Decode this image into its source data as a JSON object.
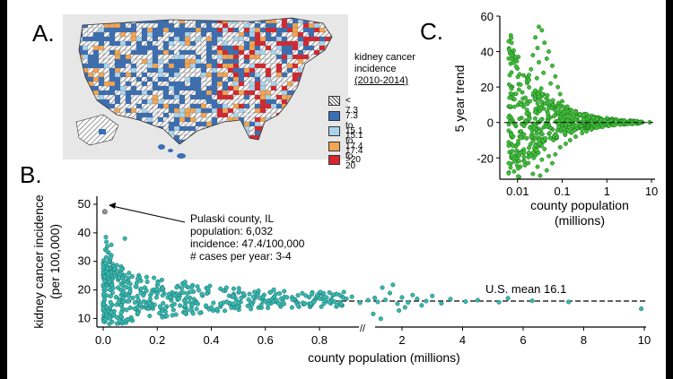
{
  "panelA": {
    "label": "A.",
    "legend_title": [
      "kidney cancer",
      "incidence",
      "(2010-2014)"
    ],
    "legend": [
      {
        "label": "< 7.3",
        "color": "#ffffff",
        "pattern": "hatch"
      },
      {
        "label": "7.3 to 15.1",
        "color": "#3a6fb5"
      },
      {
        "label": "15.1 to 17.4",
        "color": "#a9d4ec"
      },
      {
        "label": "17.4 to 20",
        "color": "#f2a553"
      },
      {
        "label": ">20",
        "color": "#d7262e"
      }
    ]
  },
  "panelB": {
    "label": "B.",
    "annotation_lines": [
      "Pulaski county, IL",
      "population:   6,032",
      "incidence:   47.4/100,000",
      "# cases per year:   3-4"
    ],
    "mean_label": "U.S. mean 16.1",
    "color": "#35b8b0"
  },
  "panelC": {
    "label": "C.",
    "color": "#3fbf3a"
  },
  "chart_data": [
    {
      "type": "scatter",
      "title": "",
      "xlabel": "county population (millions)",
      "ylabel": [
        "kidney cancer incidence",
        "(per 100,000)"
      ],
      "x_ticks_left": [
        "0.0",
        "0.2",
        "0.4",
        "0.6",
        "0.8"
      ],
      "x_ticks_right": [
        "2",
        "4",
        "6",
        "8",
        "10"
      ],
      "y_ticks": [
        "10",
        "20",
        "30",
        "40",
        "50"
      ],
      "xlim": [
        0,
        10
      ],
      "axis_break_at": 1.0,
      "ylim": [
        7,
        50
      ],
      "reference_line": {
        "y": 16.1,
        "label": "U.S. mean 16.1"
      },
      "highlight_point": {
        "x": 0.006032,
        "y": 47.4,
        "name": "Pulaski county, IL"
      },
      "points": [
        [
          0.006,
          47.4
        ],
        [
          0.01,
          38.5
        ],
        [
          0.012,
          36.8
        ],
        [
          0.015,
          35.2
        ],
        [
          0.008,
          34.1
        ],
        [
          0.02,
          33.0
        ],
        [
          0.03,
          32.1
        ],
        [
          0.011,
          31.4
        ],
        [
          0.025,
          30.5
        ],
        [
          0.018,
          29.7
        ],
        [
          0.035,
          29.0
        ],
        [
          0.04,
          28.2
        ],
        [
          0.016,
          27.5
        ],
        [
          0.05,
          26.8
        ],
        [
          0.028,
          26.1
        ],
        [
          0.06,
          25.4
        ],
        [
          0.045,
          24.9
        ],
        [
          0.07,
          24.2
        ],
        [
          0.022,
          23.8
        ],
        [
          0.08,
          23.1
        ],
        [
          0.09,
          22.6
        ],
        [
          0.1,
          22.1
        ],
        [
          0.033,
          21.7
        ],
        [
          0.12,
          21.2
        ],
        [
          0.055,
          20.8
        ],
        [
          0.14,
          20.4
        ],
        [
          0.065,
          20.0
        ],
        [
          0.16,
          19.7
        ],
        [
          0.075,
          19.3
        ],
        [
          0.18,
          19.0
        ],
        [
          0.2,
          18.7
        ],
        [
          0.085,
          18.4
        ],
        [
          0.22,
          18.1
        ],
        [
          0.095,
          17.8
        ],
        [
          0.25,
          17.5
        ],
        [
          0.11,
          17.2
        ],
        [
          0.28,
          16.9
        ],
        [
          0.13,
          16.6
        ],
        [
          0.3,
          16.3
        ],
        [
          0.15,
          16.0
        ],
        [
          0.32,
          15.7
        ],
        [
          0.17,
          15.4
        ],
        [
          0.35,
          15.1
        ],
        [
          0.19,
          14.8
        ],
        [
          0.38,
          14.5
        ],
        [
          0.21,
          14.2
        ],
        [
          0.4,
          13.9
        ],
        [
          0.23,
          13.6
        ],
        [
          0.42,
          13.3
        ],
        [
          0.26,
          13.0
        ],
        [
          0.45,
          12.7
        ],
        [
          0.02,
          12.4
        ],
        [
          0.03,
          12.0
        ],
        [
          0.012,
          11.6
        ],
        [
          0.04,
          11.2
        ],
        [
          0.015,
          10.8
        ],
        [
          0.05,
          10.4
        ],
        [
          0.025,
          10.0
        ],
        [
          0.01,
          9.6
        ],
        [
          0.06,
          9.2
        ],
        [
          0.48,
          17.9
        ],
        [
          0.5,
          15.6
        ],
        [
          0.52,
          18.6
        ],
        [
          0.55,
          14.8
        ],
        [
          0.58,
          17.1
        ],
        [
          0.6,
          16.0
        ],
        [
          0.62,
          19.2
        ],
        [
          0.65,
          15.3
        ],
        [
          0.68,
          17.4
        ],
        [
          0.7,
          16.6
        ],
        [
          0.72,
          14.6
        ],
        [
          0.75,
          18.0
        ],
        [
          0.78,
          15.8
        ],
        [
          0.8,
          17.0
        ],
        [
          0.82,
          16.3
        ],
        [
          0.85,
          18.3
        ],
        [
          0.88,
          15.0
        ],
        [
          0.9,
          16.9
        ],
        [
          0.92,
          17.6
        ],
        [
          0.95,
          15.5
        ],
        [
          0.98,
          16.4
        ],
        [
          1.1,
          17.2
        ],
        [
          1.2,
          15.8
        ],
        [
          1.35,
          20.8
        ],
        [
          1.45,
          16.5
        ],
        [
          1.6,
          18.9
        ],
        [
          1.7,
          21.8
        ],
        [
          1.85,
          15.2
        ],
        [
          2.0,
          17.4
        ],
        [
          2.1,
          13.9
        ],
        [
          2.2,
          15.6
        ],
        [
          2.35,
          18.2
        ],
        [
          2.5,
          16.9
        ],
        [
          2.65,
          14.6
        ],
        [
          2.8,
          16.1
        ],
        [
          3.0,
          17.9
        ],
        [
          3.3,
          15.3
        ],
        [
          3.6,
          16.8
        ],
        [
          4.1,
          15.9
        ],
        [
          4.5,
          16.4
        ],
        [
          5.2,
          15.7
        ],
        [
          5.5,
          17.1
        ],
        [
          6.3,
          16.2
        ],
        [
          7.5,
          15.8
        ],
        [
          9.9,
          13.4
        ],
        [
          1.3,
          9.9
        ],
        [
          1.9,
          12.8
        ],
        [
          1.05,
          11.6
        ],
        [
          0.08,
          38.0
        ],
        [
          0.03,
          35.8
        ],
        [
          0.014,
          33.6
        ],
        [
          0.027,
          31.2
        ],
        [
          0.009,
          29.4
        ],
        [
          0.042,
          27.3
        ],
        [
          0.019,
          25.7
        ],
        [
          0.058,
          24.3
        ],
        [
          0.024,
          22.9
        ],
        [
          0.072,
          21.6
        ],
        [
          0.037,
          20.6
        ],
        [
          0.1,
          19.5
        ]
      ]
    },
    {
      "type": "scatter",
      "title": "",
      "xlabel": [
        "county population",
        "(millions)"
      ],
      "ylabel": "5 year trend",
      "x_scale": "log",
      "x_ticks": [
        "0.01",
        "0.1",
        "1",
        "10"
      ],
      "y_ticks": [
        "-20",
        "0",
        "20",
        "40",
        "60"
      ],
      "xlim": [
        0.004,
        12
      ],
      "ylim": [
        -32,
        60
      ],
      "reference_line": {
        "y": 0
      },
      "points": [
        [
          0.03,
          54
        ],
        [
          0.035,
          52
        ],
        [
          0.025,
          48
        ],
        [
          0.04,
          45
        ],
        [
          0.028,
          42
        ],
        [
          0.05,
          40
        ],
        [
          0.022,
          38
        ],
        [
          0.045,
          36
        ],
        [
          0.03,
          34
        ],
        [
          0.06,
          32
        ],
        [
          0.02,
          30
        ],
        [
          0.038,
          28
        ],
        [
          0.07,
          26
        ],
        [
          0.018,
          24
        ],
        [
          0.055,
          22
        ],
        [
          0.08,
          20
        ],
        [
          0.025,
          18
        ],
        [
          0.09,
          16
        ],
        [
          0.015,
          14
        ],
        [
          0.1,
          12
        ],
        [
          0.012,
          10
        ],
        [
          0.13,
          9
        ],
        [
          0.033,
          8
        ],
        [
          0.16,
          7
        ],
        [
          0.2,
          6
        ],
        [
          0.048,
          5
        ],
        [
          0.25,
          4.5
        ],
        [
          0.3,
          4
        ],
        [
          0.065,
          3.5
        ],
        [
          0.4,
          3
        ],
        [
          0.5,
          2.5
        ],
        [
          0.6,
          2
        ],
        [
          0.75,
          1.5
        ],
        [
          0.9,
          1
        ],
        [
          1.2,
          0.8
        ],
        [
          1.6,
          0.5
        ],
        [
          2.2,
          0.3
        ],
        [
          3,
          0.2
        ],
        [
          5,
          0.1
        ],
        [
          9,
          0.1
        ],
        [
          0.012,
          -5
        ],
        [
          0.02,
          -8
        ],
        [
          0.03,
          -10
        ],
        [
          0.025,
          -13
        ],
        [
          0.04,
          -15
        ],
        [
          0.018,
          -17
        ],
        [
          0.05,
          -19
        ],
        [
          0.035,
          -21
        ],
        [
          0.06,
          -23
        ],
        [
          0.028,
          -25
        ],
        [
          0.045,
          -27
        ],
        [
          0.022,
          -29
        ],
        [
          0.032,
          -30
        ],
        [
          0.07,
          -18
        ],
        [
          0.09,
          -14
        ],
        [
          0.12,
          -12
        ],
        [
          0.15,
          -10
        ],
        [
          0.2,
          -8
        ],
        [
          0.28,
          -6
        ],
        [
          0.35,
          -5
        ],
        [
          0.45,
          -4
        ],
        [
          0.6,
          -3
        ],
        [
          0.8,
          -2.5
        ],
        [
          1.1,
          -2
        ],
        [
          1.5,
          -1.5
        ],
        [
          2,
          -1.2
        ],
        [
          2.8,
          -1
        ],
        [
          4,
          -0.6
        ],
        [
          0.011,
          2
        ],
        [
          0.016,
          5
        ],
        [
          0.014,
          -2
        ],
        [
          0.019,
          12
        ],
        [
          0.023,
          -20
        ],
        [
          0.027,
          25
        ],
        [
          0.031,
          -12
        ],
        [
          0.036,
          16
        ],
        [
          0.042,
          -9
        ],
        [
          0.047,
          11
        ],
        [
          0.052,
          -6
        ],
        [
          0.058,
          8
        ]
      ]
    }
  ]
}
